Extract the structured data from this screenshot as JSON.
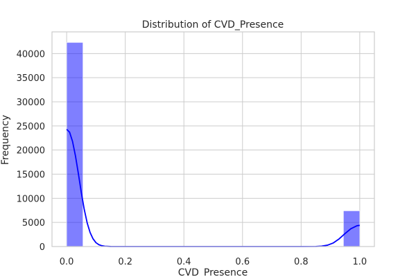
{
  "chart_data": {
    "type": "bar",
    "title": "Distribution of CVD_Presence",
    "xlabel": "CVD_Presence",
    "ylabel": "Frequency",
    "xlim": [
      -0.05,
      1.05
    ],
    "ylim": [
      0,
      44500
    ],
    "x_ticks": [
      0.0,
      0.2,
      0.4,
      0.6,
      0.8,
      1.0
    ],
    "x_tick_labels": [
      "0.0",
      "0.2",
      "0.4",
      "0.6",
      "0.8",
      "1.0"
    ],
    "y_ticks": [
      0,
      5000,
      10000,
      15000,
      20000,
      25000,
      30000,
      35000,
      40000
    ],
    "y_tick_labels": [
      "0",
      "5000",
      "10000",
      "15000",
      "20000",
      "25000",
      "30000",
      "35000",
      "40000"
    ],
    "grid": true,
    "bins": [
      {
        "x0": 0.0,
        "x1": 0.0556,
        "count": 42300
      },
      {
        "x0": 0.9444,
        "x1": 1.0,
        "count": 7400
      }
    ],
    "kde": {
      "x": [
        0.0,
        0.01,
        0.02,
        0.03,
        0.04,
        0.05,
        0.06,
        0.07,
        0.08,
        0.09,
        0.1,
        0.11,
        0.12,
        0.13,
        0.15,
        0.2,
        0.3,
        0.5,
        0.7,
        0.8,
        0.85,
        0.87,
        0.89,
        0.91,
        0.93,
        0.95,
        0.97,
        0.99,
        1.0
      ],
      "y": [
        24300,
        23700,
        21800,
        18800,
        15100,
        11200,
        7700,
        4900,
        2900,
        1600,
        800,
        380,
        170,
        70,
        10,
        0,
        0,
        0,
        0,
        0,
        20,
        80,
        280,
        750,
        1600,
        2700,
        3700,
        4300,
        4400
      ]
    },
    "colors": {
      "bar": "#0000ff",
      "kde": "#0000ff"
    }
  }
}
